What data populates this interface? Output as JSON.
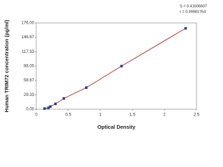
{
  "chart_data": {
    "type": "scatter",
    "x_label": "Optical Density",
    "y_label": "Human TRIM72 concentration (pg/ml)",
    "annotations": [
      "S = 0.41606607",
      "r = 0.99981764"
    ],
    "x": [
      0.13,
      0.19,
      0.22,
      0.3,
      0.43,
      0.78,
      1.33,
      2.33
    ],
    "values": [
      1.4,
      2.8,
      5.5,
      11,
      22,
      44,
      88,
      165
    ],
    "marker_color": "#1f3f8f",
    "line_color": "#b22222",
    "fit_line": true,
    "xlim": [
      0,
      2.5
    ],
    "xticks": [
      0,
      0.5,
      1,
      1.5,
      2,
      2.5
    ],
    "ylim": [
      0,
      176
    ],
    "yticks": [
      {
        "value": 0,
        "label": "0.00"
      },
      29.33,
      58.67,
      {
        "value": 88,
        "label": "88.00"
      },
      117.33,
      146.67,
      {
        "value": 176,
        "label": "176.00"
      }
    ]
  }
}
